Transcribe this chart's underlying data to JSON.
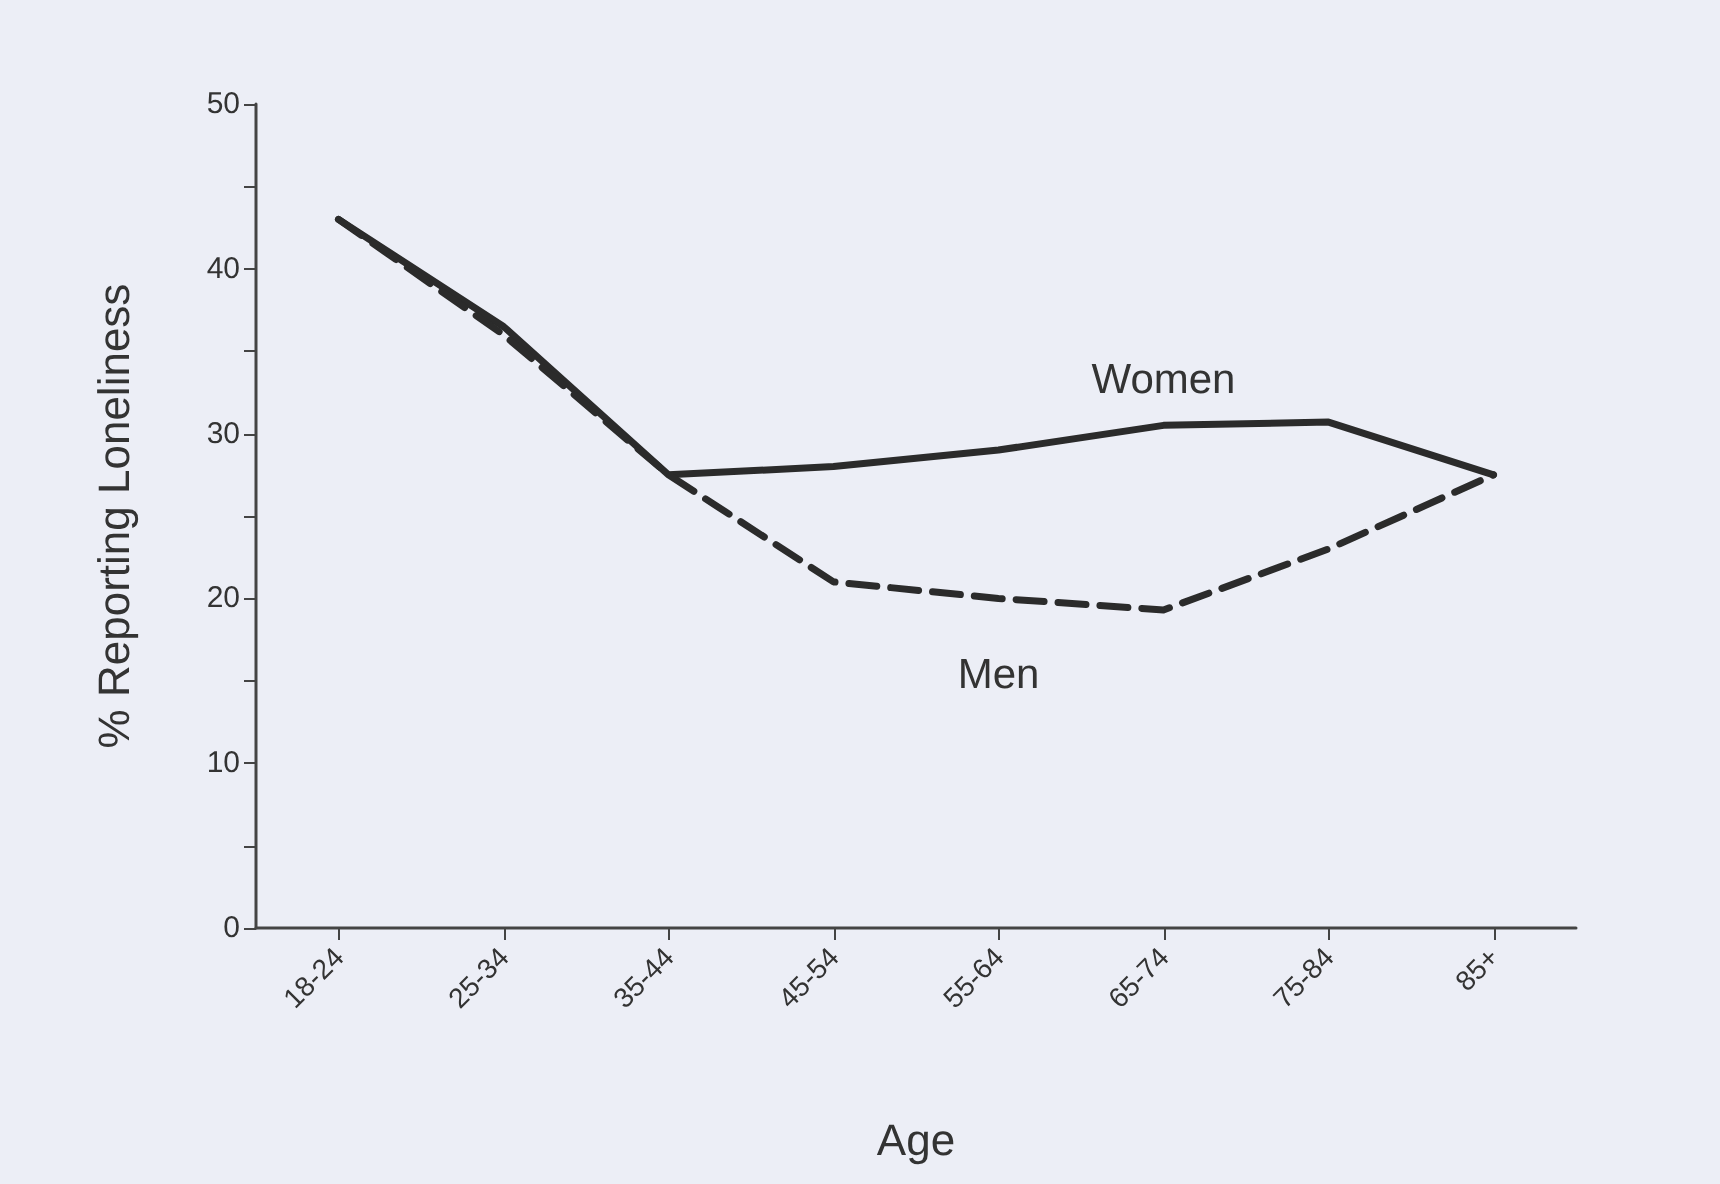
{
  "chart_data": {
    "type": "line",
    "xlabel": "Age",
    "ylabel": "% Reporting Loneliness",
    "categories": [
      "18-24",
      "25-34",
      "35-44",
      "45-54",
      "55-64",
      "65-74",
      "75-84",
      "85+"
    ],
    "series": [
      {
        "name": "Women",
        "color": "#2b2b2b",
        "line_style": "solid",
        "values": [
          43,
          36.5,
          27.5,
          28,
          29,
          30.5,
          30.7,
          27.5
        ]
      },
      {
        "name": "Men",
        "color": "#2b2b2b",
        "line_style": "dashed",
        "values": [
          43,
          36,
          27.5,
          21,
          20,
          19.3,
          23,
          27.5
        ]
      }
    ],
    "ylim": [
      0,
      50
    ],
    "yticks": [
      0,
      {
        "value": 5,
        "label": null
      },
      10,
      {
        "value": 15,
        "label": null
      },
      20,
      {
        "value": 25,
        "label": null
      },
      30,
      {
        "value": 35,
        "label": null
      },
      40,
      {
        "value": 45,
        "label": null
      },
      50
    ],
    "grid": false,
    "legend": false,
    "marker": "none"
  }
}
